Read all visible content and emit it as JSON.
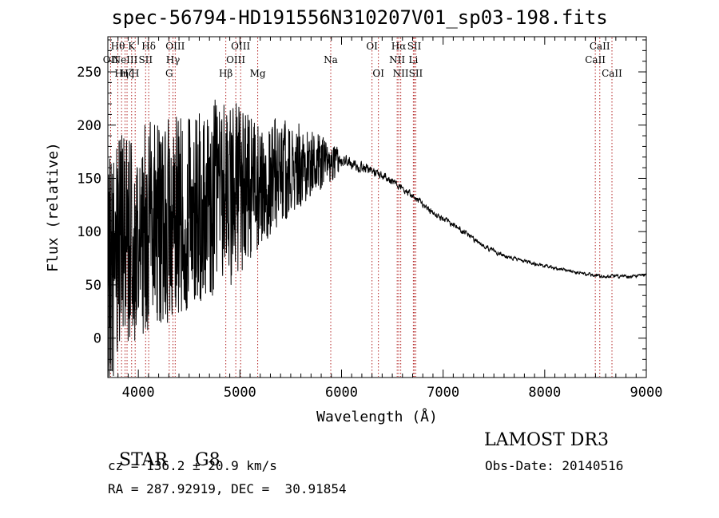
{
  "title": "spec-56794-HD191556N310207V01_sp03-198.fits",
  "footer": {
    "class_label": "STAR",
    "subclass": "G8",
    "redshift_line": "cz = 136.2 ± 20.9 km/s",
    "coords_line": "RA = 287.92919, DEC =  30.91854",
    "survey": "LAMOST DR3",
    "obs_date_line": "Obs-Date: 20140516"
  },
  "colors": {
    "spectrum": "#000000",
    "line_marker": "#b22222",
    "axes": "#000000"
  },
  "chart_data": {
    "type": "line",
    "title": "spec-56794-HD191556N310207V01_sp03-198.fits",
    "xlabel": "Wavelength (Å)",
    "ylabel": "Flux (relative)",
    "xlim": [
      3700,
      9000
    ],
    "ylim": [
      -37,
      283
    ],
    "xticks": [
      4000,
      5000,
      6000,
      7000,
      8000,
      9000
    ],
    "yticks": [
      0,
      50,
      100,
      150,
      200,
      250
    ],
    "spectrum_trend": [
      [
        3700,
        60
      ],
      [
        3800,
        80
      ],
      [
        3900,
        95
      ],
      [
        4000,
        100
      ],
      [
        4100,
        105
      ],
      [
        4200,
        108
      ],
      [
        4300,
        110
      ],
      [
        4400,
        112
      ],
      [
        4500,
        118
      ],
      [
        4600,
        125
      ],
      [
        4700,
        130
      ],
      [
        4800,
        135
      ],
      [
        4900,
        138
      ],
      [
        5000,
        140
      ],
      [
        5100,
        142
      ],
      [
        5200,
        146
      ],
      [
        5300,
        150
      ],
      [
        5400,
        158
      ],
      [
        5500,
        160
      ],
      [
        5600,
        162
      ],
      [
        5700,
        163
      ],
      [
        5800,
        165
      ],
      [
        5900,
        165
      ],
      [
        6000,
        167
      ],
      [
        6100,
        163
      ],
      [
        6200,
        160
      ],
      [
        6300,
        157
      ],
      [
        6400,
        153
      ],
      [
        6500,
        148
      ],
      [
        6600,
        140
      ],
      [
        6700,
        133
      ],
      [
        6800,
        126
      ],
      [
        6900,
        118
      ],
      [
        7000,
        112
      ],
      [
        7100,
        106
      ],
      [
        7200,
        100
      ],
      [
        7300,
        93
      ],
      [
        7400,
        87
      ],
      [
        7500,
        82
      ],
      [
        7600,
        78
      ],
      [
        7700,
        75
      ],
      [
        7800,
        72
      ],
      [
        7900,
        70
      ],
      [
        8000,
        68
      ],
      [
        8100,
        66
      ],
      [
        8200,
        64
      ],
      [
        8300,
        62
      ],
      [
        8400,
        60
      ],
      [
        8500,
        59
      ],
      [
        8600,
        58
      ],
      [
        8700,
        58
      ],
      [
        8800,
        58
      ],
      [
        8900,
        58
      ],
      [
        9000,
        59
      ]
    ],
    "noise_amplitude": [
      [
        3700,
        110
      ],
      [
        4000,
        100
      ],
      [
        4500,
        95
      ],
      [
        4900,
        90
      ],
      [
        5200,
        60
      ],
      [
        5500,
        45
      ],
      [
        5800,
        25
      ],
      [
        6000,
        10
      ],
      [
        6500,
        6
      ],
      [
        7000,
        5
      ],
      [
        8000,
        3
      ],
      [
        9000,
        3
      ]
    ],
    "emission_lines": [
      {
        "wavelength": 3727,
        "label": "OII",
        "row": 1
      },
      {
        "wavelength": 3798,
        "label": "Hθ",
        "row": 0
      },
      {
        "wavelength": 3835,
        "label": "Hη",
        "row": 2
      },
      {
        "wavelength": 3869,
        "label": "NeIII",
        "row": 1
      },
      {
        "wavelength": 3889,
        "label": "Hζ",
        "row": 2
      },
      {
        "wavelength": 3934,
        "label": "K",
        "row": 0
      },
      {
        "wavelength": 3969,
        "label": "H",
        "row": 2
      },
      {
        "wavelength": 4072,
        "label": "SII",
        "row": 1
      },
      {
        "wavelength": 4102,
        "label": "Hδ",
        "row": 0
      },
      {
        "wavelength": 4304,
        "label": "G",
        "row": 2
      },
      {
        "wavelength": 4341,
        "label": "Hγ",
        "row": 1
      },
      {
        "wavelength": 4363,
        "label": "OIII",
        "row": 0
      },
      {
        "wavelength": 4861,
        "label": "Hβ",
        "row": 2
      },
      {
        "wavelength": 4959,
        "label": "OIII",
        "row": 1
      },
      {
        "wavelength": 5007,
        "label": "OIII",
        "row": 0
      },
      {
        "wavelength": 5175,
        "label": "Mg",
        "row": 2
      },
      {
        "wavelength": 5894,
        "label": "Na",
        "row": 1
      },
      {
        "wavelength": 6300,
        "label": "OI",
        "row": 0
      },
      {
        "wavelength": 6363,
        "label": "OI",
        "row": 2
      },
      {
        "wavelength": 6548,
        "label": "NII",
        "row": 1
      },
      {
        "wavelength": 6563,
        "label": "Hα",
        "row": 0
      },
      {
        "wavelength": 6583,
        "label": "NII",
        "row": 2
      },
      {
        "wavelength": 6707,
        "label": "Li",
        "row": 1
      },
      {
        "wavelength": 6716,
        "label": "SII",
        "row": 0
      },
      {
        "wavelength": 6731,
        "label": "SII",
        "row": 2
      },
      {
        "wavelength": 8498,
        "label": "CaII",
        "row": 1
      },
      {
        "wavelength": 8542,
        "label": "CaII",
        "row": 0
      },
      {
        "wavelength": 8662,
        "label": "CaII",
        "row": 2
      }
    ]
  }
}
